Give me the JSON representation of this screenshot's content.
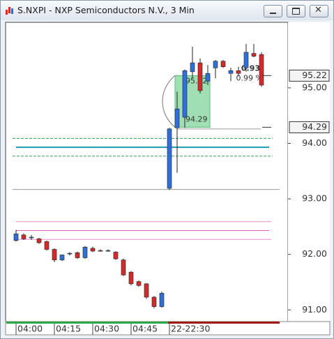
{
  "window": {
    "title": "S.NXPI - NXP Semiconductors N.V., 3 Min"
  },
  "chart_data": {
    "type": "candlestick",
    "categories": [
      "04:00",
      null,
      null,
      null,
      null,
      "04:15",
      null,
      null,
      null,
      null,
      "04:30",
      null,
      null,
      null,
      null,
      "04:45",
      null,
      null,
      null,
      null,
      "22-22:30",
      null,
      null,
      null,
      null,
      null,
      null,
      null,
      null,
      null,
      null,
      null,
      null
    ],
    "open": [
      92.25,
      92.35,
      92.3,
      92.28,
      92.23,
      92.09,
      91.9,
      92.01,
      92.03,
      91.94,
      92.11,
      92.07,
      92.06,
      92.04,
      91.9,
      91.68,
      91.51,
      91.47,
      91.23,
      91.06,
      93.19,
      94.28,
      94.47,
      95.29,
      95.45,
      95.12,
      95.36,
      95.48,
      95.26,
      95.31,
      95.36,
      95.62,
      95.6
    ],
    "high": [
      92.44,
      92.38,
      92.35,
      92.3,
      92.25,
      92.11,
      92.0,
      92.04,
      92.05,
      92.15,
      92.14,
      92.09,
      92.09,
      92.06,
      91.92,
      91.7,
      91.53,
      91.48,
      91.25,
      91.33,
      94.28,
      94.93,
      95.33,
      95.74,
      95.53,
      95.41,
      95.5,
      95.5,
      95.36,
      95.38,
      95.79,
      95.79,
      95.64
    ],
    "low": [
      92.23,
      92.26,
      92.26,
      92.19,
      92.07,
      91.86,
      91.88,
      91.98,
      91.92,
      91.92,
      92.04,
      92.05,
      92.05,
      91.9,
      91.61,
      91.44,
      91.42,
      91.2,
      91.03,
      91.04,
      93.16,
      93.47,
      94.28,
      95.17,
      94.9,
      95.05,
      95.17,
      95.36,
      95.12,
      95.21,
      95.29,
      95.55,
      95.02
    ],
    "close": [
      92.37,
      92.28,
      92.31,
      92.21,
      92.09,
      91.9,
      91.99,
      92.02,
      91.94,
      92.13,
      92.06,
      92.06,
      92.07,
      91.92,
      91.63,
      91.47,
      91.44,
      91.23,
      91.06,
      91.3,
      94.26,
      94.62,
      95.31,
      95.45,
      94.95,
      95.26,
      95.48,
      95.38,
      95.31,
      95.26,
      95.64,
      95.57,
      95.05
    ],
    "up_color": "#2f6fd8",
    "down_color": "#d42a2a",
    "ylim": [
      90.79,
      96.18
    ],
    "yticks": [
      {
        "value": 91,
        "label": "91.00"
      },
      {
        "value": 92,
        "label": "92.00"
      },
      {
        "value": 93,
        "label": "93.00"
      },
      {
        "value": 94,
        "label": "94.00"
      },
      {
        "value": 95,
        "label": "95.00"
      }
    ],
    "levels": [
      {
        "value": 94.09,
        "color": "#2aa84a",
        "dash": true
      },
      {
        "value": 93.93,
        "color": "#1a9bb0",
        "dash": false
      },
      {
        "value": 93.77,
        "color": "#2aa84a",
        "dash": true
      },
      {
        "value": 93.17,
        "color": "#9a9a9a",
        "dash": false
      },
      {
        "value": 94.26,
        "color": "#9a9a9a",
        "dash": false
      },
      {
        "value": 92.59,
        "color": "#e890c8",
        "dash": false
      },
      {
        "value": 92.43,
        "color": "#e060b8",
        "dash": false
      },
      {
        "value": 92.27,
        "color": "#e890c8",
        "dash": false
      }
    ],
    "measure": {
      "from": 94.29,
      "to": 95.22,
      "change": 0.93,
      "percent": {
        "value": 0.99,
        "label": "0.99 %"
      },
      "color": "#7fd49a"
    },
    "price_tags": [
      95.22,
      94.29
    ]
  }
}
